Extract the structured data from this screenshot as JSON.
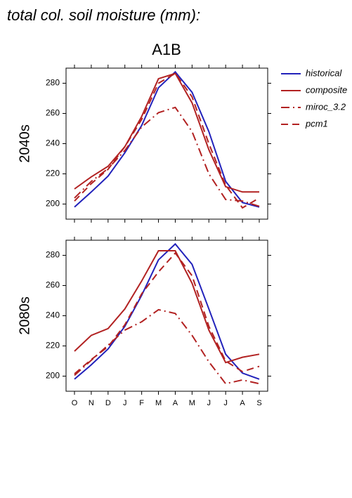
{
  "title": "total col. soil moisture (mm):",
  "subtitle": "A1B",
  "chart_data": [
    {
      "type": "line",
      "label": "2040s",
      "ylim": [
        190,
        290
      ],
      "yticks": [
        200,
        220,
        240,
        260,
        280
      ],
      "series": [
        {
          "name": "historical",
          "color": "#2222bb",
          "style": "solid",
          "values": [
            198,
            208,
            218.5,
            234,
            252,
            277,
            287.5,
            274,
            248,
            215,
            201,
            198
          ]
        },
        {
          "name": "composite",
          "color": "#b22222",
          "style": "solid",
          "values": [
            210,
            218,
            225,
            238,
            258,
            283,
            286.5,
            267,
            236,
            211.5,
            208,
            208
          ]
        },
        {
          "name": "miroc_3.2",
          "color": "#b22222",
          "style": "dashdot",
          "values": [
            204,
            215,
            223.5,
            235.5,
            251,
            260.5,
            264,
            248,
            220,
            203,
            202,
            198.5
          ]
        },
        {
          "name": "pcm1",
          "color": "#b22222",
          "style": "dashed",
          "values": [
            202,
            213.5,
            223,
            238,
            256,
            280,
            286.5,
            271,
            240,
            212.5,
            197.5,
            204
          ]
        }
      ]
    },
    {
      "type": "line",
      "label": "2080s",
      "ylim": [
        190,
        290
      ],
      "yticks": [
        200,
        220,
        240,
        260,
        280
      ],
      "categories": [
        "O",
        "N",
        "D",
        "J",
        "F",
        "M",
        "A",
        "M",
        "J",
        "J",
        "A",
        "S"
      ],
      "series": [
        {
          "name": "historical",
          "color": "#2222bb",
          "style": "solid",
          "values": [
            198,
            207.5,
            218,
            233,
            253.5,
            277,
            287.5,
            274,
            244.5,
            214.5,
            202,
            198
          ]
        },
        {
          "name": "composite",
          "color": "#b22222",
          "style": "solid",
          "values": [
            216.5,
            227,
            231.5,
            244.5,
            263,
            283,
            283,
            261.5,
            230.5,
            209,
            212.5,
            214.5
          ]
        },
        {
          "name": "miroc_3.2",
          "color": "#b22222",
          "style": "dashdot",
          "values": [
            200.5,
            210.5,
            220.5,
            230.5,
            236,
            244,
            241.5,
            227,
            209.5,
            195,
            197.5,
            195
          ]
        },
        {
          "name": "pcm1",
          "color": "#b22222",
          "style": "dashed",
          "values": [
            201.5,
            211,
            219.5,
            234,
            254.5,
            269,
            281.5,
            266.5,
            233,
            210,
            203,
            206.5
          ]
        }
      ]
    }
  ]
}
